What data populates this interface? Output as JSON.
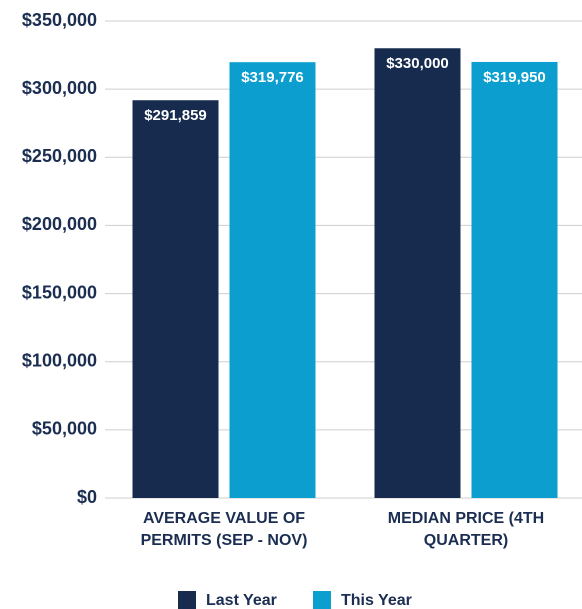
{
  "chart_data": {
    "type": "bar",
    "categories": [
      "AVERAGE VALUE OF PERMITS (SEP - NOV)",
      "MEDIAN PRICE (4TH QUARTER)"
    ],
    "series": [
      {
        "name": "Last Year",
        "color": "#172b4f",
        "values": [
          291859,
          330000
        ],
        "value_labels": [
          "$291,859",
          "$330,000"
        ]
      },
      {
        "name": "This Year",
        "color": "#0b9ecf",
        "values": [
          319776,
          319950
        ],
        "value_labels": [
          "$319,776",
          "$319,950"
        ]
      }
    ],
    "ylim": [
      0,
      350000
    ],
    "yticks": [
      {
        "value": 0,
        "label": "$0"
      },
      {
        "value": 50000,
        "label": "$50,000"
      },
      {
        "value": 100000,
        "label": "$100,000"
      },
      {
        "value": 150000,
        "label": "$150,000"
      },
      {
        "value": 200000,
        "label": "$200,000"
      },
      {
        "value": 250000,
        "label": "$250,000"
      },
      {
        "value": 300000,
        "label": "$300,000"
      },
      {
        "value": 350000,
        "label": "$350,000"
      }
    ],
    "grid": true,
    "legend": "bottom"
  }
}
